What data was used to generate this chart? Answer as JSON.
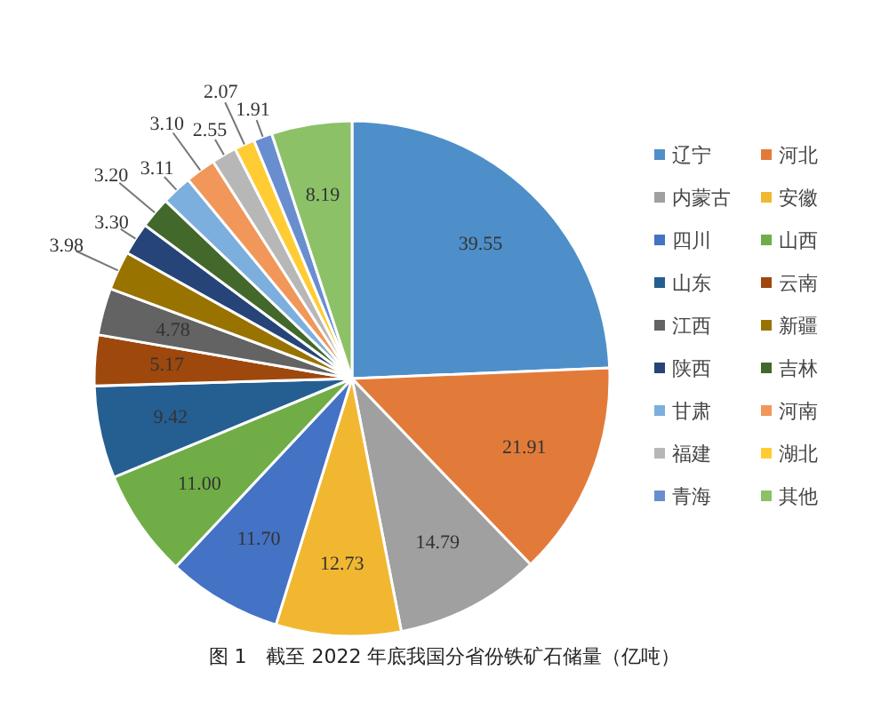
{
  "chart_data": {
    "type": "pie",
    "title": "图 1　截至 2022 年底我国分省份铁矿石储量（亿吨）",
    "categories": [
      "辽宁",
      "河北",
      "内蒙古",
      "安徽",
      "四川",
      "山西",
      "山东",
      "云南",
      "江西",
      "新疆",
      "陕西",
      "吉林",
      "甘肃",
      "河南",
      "福建",
      "湖北",
      "青海",
      "其他"
    ],
    "values": [
      39.55,
      21.91,
      14.79,
      12.73,
      11.7,
      11.0,
      9.42,
      5.17,
      4.78,
      3.98,
      3.3,
      3.2,
      3.11,
      3.1,
      2.55,
      2.07,
      1.91,
      8.19
    ],
    "colors": [
      "#4e8fc9",
      "#e27b3a",
      "#a0a0a0",
      "#f2b731",
      "#4472c4",
      "#70ad47",
      "#255e91",
      "#9e480e",
      "#636363",
      "#997300",
      "#264478",
      "#43682b",
      "#7cafdd",
      "#f1975a",
      "#b7b7b7",
      "#ffcd33",
      "#698ed0",
      "#8cc168"
    ],
    "value_labels": [
      "39.55",
      "21.91",
      "14.79",
      "12.73",
      "11.70",
      "11.00",
      "9.42",
      "5.17",
      "4.78",
      "3.98",
      "3.30",
      "3.20",
      "3.11",
      "3.10",
      "2.55",
      "2.07",
      "1.91",
      "8.19"
    ],
    "legend": "right"
  }
}
